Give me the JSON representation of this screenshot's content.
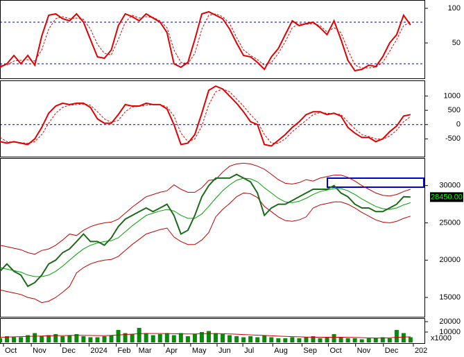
{
  "chart_data": [
    {
      "type": "line",
      "xlim": [
        0,
        61
      ],
      "ylim": [
        0,
        110
      ],
      "yticks": [
        50,
        100
      ],
      "hlines": [
        20,
        80
      ],
      "series": [
        {
          "color": "#e00000",
          "style": "solid",
          "values": [
            15,
            20,
            32,
            20,
            32,
            18,
            60,
            90,
            92,
            85,
            82,
            92,
            80,
            55,
            30,
            28,
            40,
            75,
            92,
            88,
            82,
            92,
            86,
            80,
            65,
            20,
            15,
            22,
            55,
            92,
            95,
            90,
            85,
            70,
            50,
            32,
            30,
            22,
            12,
            30,
            42,
            62,
            82,
            75,
            78,
            80,
            72,
            62,
            82,
            55,
            25,
            10,
            12,
            18,
            16,
            30,
            50,
            62,
            90,
            76
          ]
        },
        {
          "color": "#e00000",
          "style": "dashed",
          "values": [
            18,
            18,
            24,
            25,
            26,
            24,
            40,
            70,
            85,
            88,
            85,
            86,
            84,
            70,
            48,
            35,
            33,
            55,
            80,
            90,
            86,
            88,
            87,
            82,
            72,
            40,
            22,
            20,
            35,
            70,
            90,
            92,
            88,
            78,
            58,
            40,
            32,
            26,
            18,
            22,
            35,
            52,
            72,
            78,
            77,
            78,
            75,
            66,
            72,
            65,
            40,
            18,
            14,
            14,
            15,
            22,
            38,
            55,
            75,
            80
          ]
        }
      ]
    },
    {
      "type": "line",
      "xlim": [
        0,
        61
      ],
      "ylim": [
        -1100,
        1500
      ],
      "yticks": [
        1000,
        500,
        0,
        -500
      ],
      "hlines": [
        0
      ],
      "series": [
        {
          "color": "#e00000",
          "style": "solid",
          "values": [
            -600,
            -650,
            -600,
            -650,
            -700,
            -500,
            -100,
            400,
            650,
            750,
            700,
            750,
            750,
            600,
            200,
            50,
            50,
            350,
            700,
            650,
            650,
            750,
            700,
            700,
            550,
            0,
            -700,
            -650,
            -350,
            400,
            1200,
            1350,
            1250,
            1000,
            750,
            450,
            100,
            0,
            -700,
            -750,
            -550,
            -350,
            -100,
            100,
            350,
            450,
            450,
            350,
            400,
            300,
            -100,
            -300,
            -450,
            -450,
            -600,
            -500,
            -250,
            -50,
            300,
            350
          ]
        },
        {
          "color": "#e00000",
          "style": "dashed",
          "values": [
            -450,
            -600,
            -620,
            -630,
            -660,
            -600,
            -350,
            50,
            400,
            600,
            680,
            700,
            720,
            680,
            450,
            200,
            80,
            150,
            450,
            620,
            640,
            680,
            700,
            700,
            620,
            300,
            -300,
            -600,
            -500,
            -50,
            700,
            1150,
            1250,
            1150,
            900,
            650,
            350,
            100,
            -350,
            -650,
            -650,
            -500,
            -250,
            -50,
            150,
            350,
            420,
            400,
            380,
            350,
            100,
            -150,
            -350,
            -420,
            -500,
            -520,
            -400,
            -200,
            100,
            280
          ]
        }
      ]
    },
    {
      "type": "line",
      "xlim": [
        0,
        61
      ],
      "ylim": [
        12500,
        33500
      ],
      "yticks": [
        15000,
        20000,
        25000,
        30000
      ],
      "last_value": {
        "value": 28450,
        "label": "28450.00"
      },
      "series": [
        {
          "color": "#c00000",
          "style": "thin",
          "values": [
            22000,
            21800,
            21600,
            21400,
            21000,
            20800,
            21300,
            21500,
            22000,
            22700,
            23500,
            23300,
            24000,
            24500,
            24800,
            25000,
            25100,
            25500,
            26300,
            27100,
            27800,
            28500,
            28800,
            29100,
            29300,
            30100,
            29500,
            29100,
            29100,
            29700,
            30700,
            30800,
            31800,
            32600,
            32900,
            33000,
            32900,
            32600,
            32200,
            31500,
            30800,
            30300,
            30200,
            30400,
            30800,
            30600,
            31000,
            31200,
            31400,
            31400,
            31100,
            30600,
            30000,
            29500,
            29000,
            28700,
            28600,
            28800,
            29200,
            29500
          ]
        },
        {
          "color": "#c00000",
          "style": "thin",
          "values": [
            16000,
            15800,
            15600,
            15400,
            15000,
            14800,
            14300,
            14500,
            15000,
            15700,
            16500,
            18300,
            19000,
            19500,
            19800,
            20000,
            20100,
            20500,
            21300,
            22100,
            22800,
            23500,
            23800,
            24100,
            24300,
            23100,
            22500,
            22100,
            22100,
            22700,
            23700,
            25800,
            26800,
            27600,
            28500,
            29000,
            28900,
            28400,
            27200,
            26500,
            25800,
            25300,
            25200,
            25400,
            25800,
            27000,
            27400,
            27600,
            27800,
            27800,
            27500,
            27000,
            26400,
            25900,
            25400,
            25100,
            25000,
            25200,
            25600,
            25900
          ]
        },
        {
          "color": "#00a000",
          "style": "thin",
          "values": [
            19000,
            18800,
            18600,
            18400,
            18000,
            17800,
            17800,
            18000,
            18500,
            19200,
            20000,
            20800,
            21500,
            22000,
            22300,
            22500,
            22600,
            23000,
            23800,
            24600,
            25300,
            26000,
            26300,
            26600,
            26800,
            26600,
            26000,
            25600,
            25600,
            26200,
            27200,
            28300,
            29300,
            30100,
            30700,
            31000,
            30900,
            30500,
            29700,
            29000,
            28300,
            27800,
            27700,
            27900,
            28300,
            28800,
            29200,
            29400,
            29600,
            29600,
            29300,
            28800,
            28200,
            27700,
            27200,
            26900,
            26800,
            27000,
            27400,
            27700
          ]
        },
        {
          "color": "#1a6a1a",
          "style": "solid",
          "values": [
            18500,
            19500,
            18500,
            18000,
            16500,
            17000,
            18000,
            19500,
            20000,
            21000,
            21500,
            22500,
            23500,
            22500,
            22500,
            22000,
            23000,
            24500,
            25500,
            26000,
            26500,
            27000,
            26500,
            27000,
            27500,
            26000,
            23500,
            24000,
            26000,
            28500,
            30000,
            31000,
            31000,
            31000,
            31500,
            31000,
            30500,
            29000,
            26000,
            27000,
            27500,
            27500,
            28000,
            28500,
            29000,
            29500,
            29500,
            29500,
            30000,
            29000,
            28500,
            27500,
            27000,
            27000,
            26500,
            26500,
            27000,
            27500,
            28500,
            28450
          ]
        }
      ]
    },
    {
      "type": "bar",
      "xlim": [
        0,
        61
      ],
      "ylim": [
        0,
        22000
      ],
      "yticks": [
        20000,
        10000
      ],
      "unit_label": "x1000",
      "xticks": [
        {
          "value": 0.5,
          "label": "Oct"
        },
        {
          "value": 4.5,
          "label": "Nov"
        },
        {
          "value": 8.7,
          "label": "Dec"
        },
        {
          "value": 12.8,
          "label": "2024"
        },
        {
          "value": 16.7,
          "label": "Feb"
        },
        {
          "value": 19.7,
          "label": "Mar"
        },
        {
          "value": 23.6,
          "label": "Apr"
        },
        {
          "value": 27.4,
          "label": "May"
        },
        {
          "value": 31.2,
          "label": "Jun"
        },
        {
          "value": 34.9,
          "label": "Jul"
        },
        {
          "value": 39.2,
          "label": "Aug"
        },
        {
          "value": 43.4,
          "label": "Sep"
        },
        {
          "value": 47.2,
          "label": "Oct"
        },
        {
          "value": 51.1,
          "label": "Nov"
        },
        {
          "value": 55.1,
          "label": "Dec"
        },
        {
          "value": 59.4,
          "label": "202"
        }
      ],
      "series": [
        {
          "type": "bar",
          "color": "#0a8a0a",
          "values": [
            4000,
            6000,
            5000,
            5000,
            7000,
            9000,
            6000,
            7000,
            8000,
            6000,
            7000,
            8000,
            6000,
            5000,
            5000,
            6000,
            7000,
            12000,
            9000,
            8000,
            14000,
            9000,
            7000,
            8000,
            9000,
            7000,
            9000,
            6000,
            8000,
            10000,
            11000,
            9000,
            8000,
            7000,
            6000,
            5000,
            6000,
            5000,
            7000,
            5000,
            4000,
            4000,
            5000,
            4000,
            5000,
            6000,
            4000,
            5000,
            8000,
            5000,
            4000,
            4000,
            3000,
            4000,
            4000,
            5000,
            4000,
            12000,
            9000,
            5000
          ]
        },
        {
          "type": "line",
          "color": "#d00000",
          "values": [
            5000,
            5200,
            5400,
            5600,
            5800,
            6000,
            6200,
            6400,
            6500,
            6600,
            6700,
            6800,
            6800,
            6700,
            6600,
            6600,
            6800,
            7200,
            7600,
            8000,
            8400,
            8600,
            8600,
            8600,
            8500,
            8400,
            8300,
            8200,
            8200,
            8400,
            8500,
            8500,
            8400,
            8200,
            7900,
            7600,
            7300,
            7000,
            6700,
            6400,
            6100,
            5800,
            5600,
            5400,
            5200,
            5100,
            5000,
            5000,
            5000,
            5000,
            4900,
            4800,
            4600,
            4400,
            4300,
            4300,
            4500,
            4900,
            5200,
            5400
          ]
        }
      ]
    }
  ]
}
